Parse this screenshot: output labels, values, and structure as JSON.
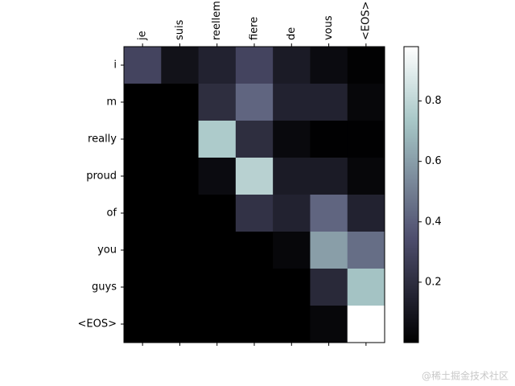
{
  "chart_data": {
    "type": "heatmap",
    "colormap": "bone",
    "x_categories": [
      "je",
      "suis",
      "reellem",
      "fiere",
      "de",
      "vous",
      "<EOS>"
    ],
    "y_categories": [
      "i",
      "m",
      "really",
      "proud",
      "of",
      "you",
      "guys",
      "<EOS>"
    ],
    "values": [
      [
        0.3,
        0.08,
        0.15,
        0.3,
        0.12,
        0.05,
        0.01
      ],
      [
        0,
        0,
        0.2,
        0.42,
        0.15,
        0.15,
        0.03
      ],
      [
        0,
        0,
        0.75,
        0.2,
        0.04,
        0.005,
        0.005
      ],
      [
        0,
        0,
        0.05,
        0.78,
        0.12,
        0.12,
        0.03
      ],
      [
        0,
        0,
        0,
        0.22,
        0.15,
        0.42,
        0.15
      ],
      [
        0,
        0,
        0,
        0,
        0.03,
        0.6,
        0.45
      ],
      [
        0,
        0,
        0,
        0,
        0,
        0.18,
        0.72
      ],
      [
        0,
        0,
        0,
        0,
        0,
        0.03,
        0.98
      ]
    ],
    "clim": [
      0,
      0.98
    ],
    "colorbar_ticks": [
      0.2,
      0.4,
      0.6,
      0.8
    ]
  },
  "watermark": "@稀土掘金技术社区"
}
